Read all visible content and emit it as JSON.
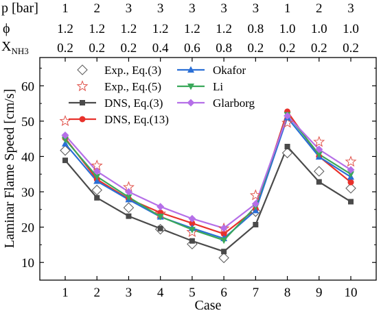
{
  "header_table": {
    "rows": [
      {
        "label": "p [bar]",
        "values": [
          "1",
          "2",
          "3",
          "3",
          "3",
          "3",
          "3",
          "1",
          "2",
          "3"
        ]
      },
      {
        "label": "ϕ",
        "values": [
          "1.2",
          "1.2",
          "1.2",
          "1.2",
          "1.2",
          "1.2",
          "0.8",
          "1.0",
          "1.0",
          "1.0"
        ]
      },
      {
        "label_main": "X",
        "label_sub": "NH3",
        "values": [
          "0.2",
          "0.2",
          "0.2",
          "0.4",
          "0.6",
          "0.8",
          "0.2",
          "0.2",
          "0.2",
          "0.2"
        ]
      }
    ]
  },
  "chart_data": {
    "type": "line",
    "xlabel": "Case",
    "ylabel": "Laminar Flame Speed [cm/s]",
    "x": [
      1,
      2,
      3,
      4,
      5,
      6,
      7,
      8,
      9,
      10
    ],
    "xlim": [
      0.2,
      10.8
    ],
    "ylim": [
      5,
      68
    ],
    "yticks": [
      10,
      20,
      30,
      40,
      50,
      60
    ],
    "grid": false,
    "legend_placement": "top-left, two columns",
    "series": [
      {
        "name": "Exp., Eq.(3)",
        "marker": "diamond-open",
        "color": "#606060",
        "line": false,
        "values": [
          41.7,
          30.5,
          25.5,
          19.4,
          15.2,
          11.3,
          24.4,
          41.0,
          35.8,
          31.0
        ]
      },
      {
        "name": "Exp., Eq.(5)",
        "marker": "star-open",
        "color": "#e0524a",
        "line": false,
        "values": [
          50.0,
          37.4,
          31.3,
          23.8,
          18.6,
          19.6,
          29.0,
          49.5,
          44.1,
          38.5
        ]
      },
      {
        "name": "DNS, Eq.(3)",
        "marker": "square",
        "color": "#4a4a4a",
        "line": true,
        "values": [
          38.9,
          28.3,
          23.1,
          19.6,
          16.1,
          13.1,
          20.7,
          42.8,
          32.8,
          27.2
        ]
      },
      {
        "name": "DNS, Eq.(13)",
        "marker": "circle",
        "color": "#e8312b",
        "line": true,
        "values": [
          45.2,
          33.5,
          28.0,
          24.1,
          21.1,
          18.1,
          25.1,
          52.7,
          40.0,
          32.7
        ]
      },
      {
        "name": "Okafor",
        "marker": "triangle-up",
        "color": "#2a6fd6",
        "line": true,
        "values": [
          43.6,
          33.0,
          27.8,
          22.9,
          19.7,
          16.8,
          24.7,
          51.0,
          39.9,
          34.2
        ]
      },
      {
        "name": "Li",
        "marker": "triangle-down",
        "color": "#3aa85a",
        "line": true,
        "values": [
          44.8,
          34.3,
          28.5,
          23.0,
          19.3,
          16.3,
          25.8,
          51.8,
          40.6,
          35.0
        ]
      },
      {
        "name": "Glarborg",
        "marker": "diamond",
        "color": "#b56fe8",
        "line": true,
        "values": [
          46.0,
          35.8,
          30.0,
          25.8,
          22.4,
          19.7,
          26.6,
          51.5,
          42.0,
          36.2
        ]
      }
    ]
  }
}
